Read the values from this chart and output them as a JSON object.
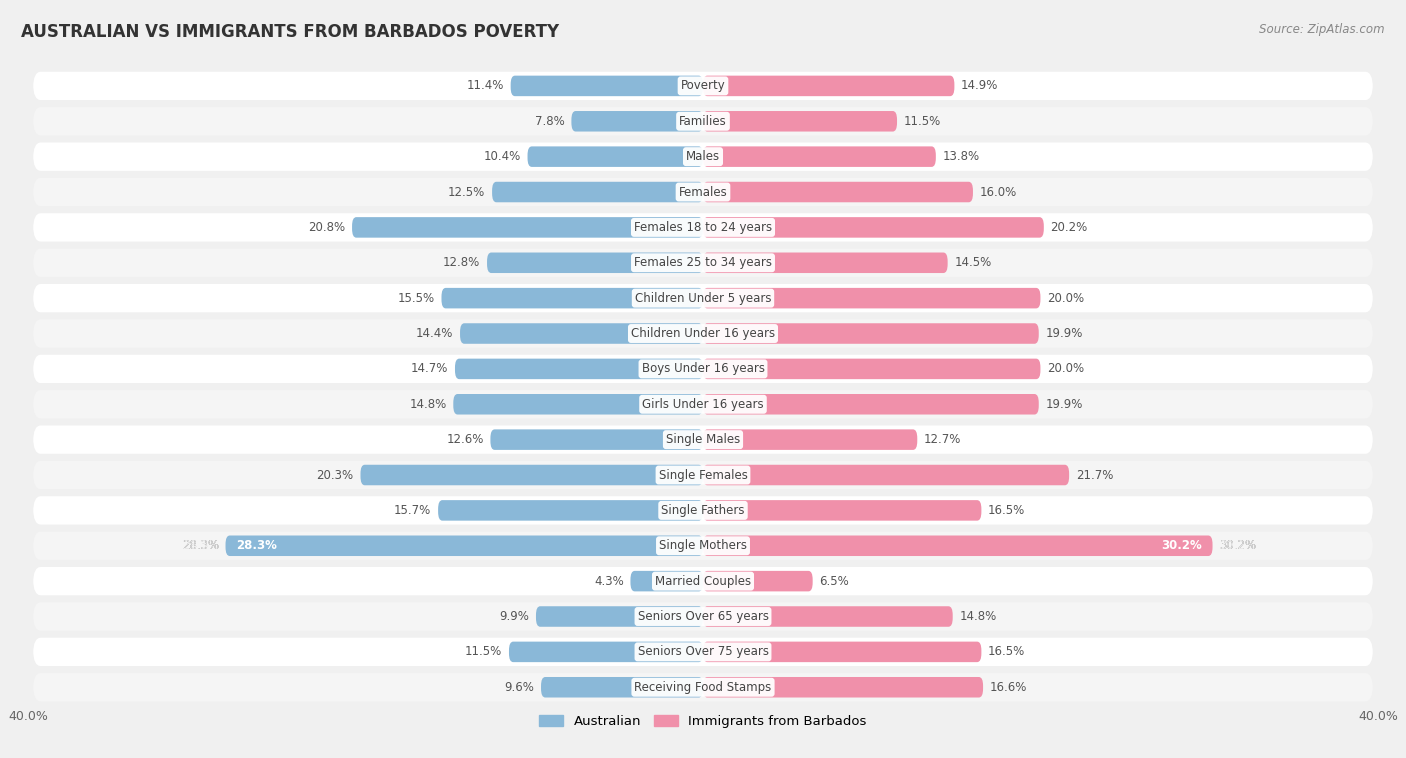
{
  "title": "AUSTRALIAN VS IMMIGRANTS FROM BARBADOS POVERTY",
  "source": "Source: ZipAtlas.com",
  "categories": [
    "Poverty",
    "Families",
    "Males",
    "Females",
    "Females 18 to 24 years",
    "Females 25 to 34 years",
    "Children Under 5 years",
    "Children Under 16 years",
    "Boys Under 16 years",
    "Girls Under 16 years",
    "Single Males",
    "Single Females",
    "Single Fathers",
    "Single Mothers",
    "Married Couples",
    "Seniors Over 65 years",
    "Seniors Over 75 years",
    "Receiving Food Stamps"
  ],
  "australian": [
    11.4,
    7.8,
    10.4,
    12.5,
    20.8,
    12.8,
    15.5,
    14.4,
    14.7,
    14.8,
    12.6,
    20.3,
    15.7,
    28.3,
    4.3,
    9.9,
    11.5,
    9.6
  ],
  "immigrants": [
    14.9,
    11.5,
    13.8,
    16.0,
    20.2,
    14.5,
    20.0,
    19.9,
    20.0,
    19.9,
    12.7,
    21.7,
    16.5,
    30.2,
    6.5,
    14.8,
    16.5,
    16.6
  ],
  "australian_color": "#8ab8d8",
  "immigrants_color": "#f090aa",
  "row_light": "#f5f5f5",
  "row_white": "#ffffff",
  "background_color": "#f0f0f0",
  "xlim": 40.0,
  "bar_height": 0.58,
  "label_fontsize": 8.5,
  "value_fontsize": 8.5,
  "legend_labels": [
    "Australian",
    "Immigrants from Barbados"
  ]
}
